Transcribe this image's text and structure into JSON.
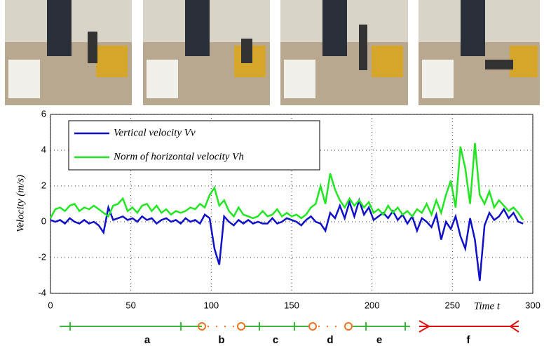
{
  "chart_data": {
    "type": "line",
    "y_label": "Velocity (m/s)",
    "x_label": "Time t",
    "x": [
      0,
      3,
      6,
      9,
      12,
      15,
      18,
      21,
      24,
      27,
      30,
      33,
      36,
      39,
      42,
      45,
      48,
      51,
      54,
      57,
      60,
      63,
      66,
      69,
      72,
      75,
      78,
      81,
      84,
      87,
      90,
      93,
      96,
      99,
      102,
      105,
      108,
      111,
      114,
      117,
      120,
      123,
      126,
      129,
      132,
      135,
      138,
      141,
      144,
      147,
      150,
      153,
      156,
      159,
      162,
      165,
      168,
      171,
      174,
      177,
      180,
      183,
      186,
      189,
      192,
      195,
      198,
      201,
      204,
      207,
      210,
      213,
      216,
      219,
      222,
      225,
      228,
      231,
      234,
      237,
      240,
      243,
      246,
      249,
      252,
      255,
      258,
      261,
      264,
      267,
      270,
      273,
      276,
      279,
      282,
      285,
      288,
      291,
      294
    ],
    "series": [
      {
        "name": "Vertical velocity Vv",
        "color": "#1010c8",
        "values": [
          0.1,
          0.0,
          0.1,
          -0.1,
          0.2,
          0.0,
          -0.1,
          0.1,
          -0.1,
          0.0,
          -0.2,
          -0.6,
          0.8,
          0.1,
          0.2,
          0.3,
          0.1,
          0.2,
          0.0,
          0.3,
          0.1,
          0.2,
          -0.1,
          0.1,
          0.2,
          0.0,
          0.1,
          -0.1,
          0.2,
          0.0,
          0.1,
          -0.1,
          0.4,
          0.2,
          -1.5,
          -2.4,
          0.3,
          0.0,
          -0.2,
          0.1,
          -0.1,
          0.1,
          -0.1,
          0.0,
          -0.1,
          -0.1,
          0.2,
          -0.1,
          0.0,
          0.2,
          0.1,
          0.0,
          -0.2,
          0.1,
          0.3,
          0.0,
          -0.1,
          -0.5,
          0.5,
          0.2,
          0.9,
          0.2,
          1.1,
          0.3,
          1.2,
          0.4,
          0.8,
          0.1,
          0.3,
          0.5,
          0.2,
          0.6,
          0.1,
          0.4,
          -0.1,
          0.3,
          -0.5,
          0.2,
          0.0,
          -0.3,
          0.4,
          -1.0,
          0.0,
          -0.4,
          0.3,
          -0.8,
          -1.5,
          0.2,
          -1.0,
          -3.3,
          -0.2,
          0.5,
          0.1,
          0.3,
          0.7,
          0.2,
          0.5,
          0.0,
          -0.1
        ]
      },
      {
        "name": "Norm of horizontal velocity Vh",
        "color": "#22e622",
        "values": [
          0.2,
          0.7,
          0.8,
          0.6,
          0.9,
          1.0,
          0.6,
          0.8,
          0.7,
          0.9,
          0.7,
          0.5,
          0.3,
          0.9,
          1.0,
          1.3,
          0.6,
          0.8,
          0.5,
          0.9,
          1.0,
          0.6,
          0.9,
          0.5,
          0.7,
          0.4,
          0.6,
          0.5,
          0.6,
          0.8,
          0.7,
          1.0,
          0.8,
          1.5,
          1.9,
          0.9,
          1.2,
          0.6,
          0.3,
          0.8,
          0.4,
          0.3,
          0.2,
          0.3,
          0.6,
          0.3,
          0.4,
          0.7,
          0.3,
          0.5,
          0.3,
          0.4,
          0.2,
          0.4,
          0.8,
          1.0,
          2.0,
          1.0,
          2.7,
          1.8,
          1.2,
          0.8,
          1.3,
          0.9,
          1.2,
          0.8,
          1.1,
          0.5,
          0.7,
          0.4,
          0.9,
          0.5,
          0.8,
          0.4,
          0.6,
          0.3,
          0.7,
          0.5,
          1.0,
          0.4,
          1.2,
          0.5,
          1.5,
          2.3,
          0.8,
          4.2,
          3.0,
          1.0,
          4.4,
          1.5,
          1.0,
          1.7,
          0.8,
          1.2,
          0.9,
          0.6,
          0.8,
          0.5,
          0.1
        ]
      }
    ],
    "xlim": [
      0,
      300
    ],
    "ylim": [
      -4,
      6
    ],
    "xticks": [
      0,
      50,
      100,
      150,
      200,
      250,
      300
    ],
    "yticks": [
      -4,
      -2,
      0,
      2,
      4,
      6
    ],
    "grid": true,
    "legend": "upper left"
  },
  "timeline": {
    "labels": [
      "a",
      "b",
      "c",
      "d",
      "e",
      "f"
    ]
  }
}
